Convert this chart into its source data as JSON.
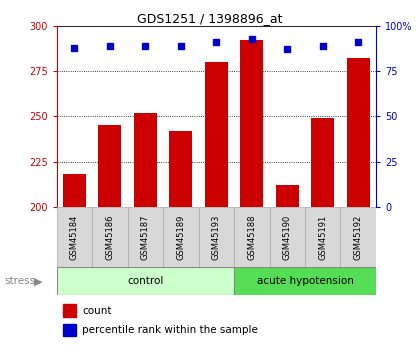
{
  "title": "GDS1251 / 1398896_at",
  "samples": [
    "GSM45184",
    "GSM45186",
    "GSM45187",
    "GSM45189",
    "GSM45193",
    "GSM45188",
    "GSM45190",
    "GSM45191",
    "GSM45192"
  ],
  "counts": [
    218,
    245,
    252,
    242,
    280,
    292,
    212,
    249,
    282
  ],
  "percentiles": [
    88,
    89,
    89,
    89,
    91,
    93,
    87,
    89,
    91
  ],
  "n_control": 5,
  "n_acute": 4,
  "control_label": "control",
  "acute_label": "acute hypotension",
  "control_color_light": "#ccffcc",
  "acute_color_dark": "#55dd55",
  "bar_color": "#cc0000",
  "dot_color": "#0000cc",
  "ylim": [
    200,
    300
  ],
  "y_ticks": [
    200,
    225,
    250,
    275,
    300
  ],
  "y2lim": [
    0,
    100
  ],
  "y2_ticks": [
    0,
    25,
    50,
    75,
    100
  ],
  "left_axis_color": "#cc0000",
  "right_axis_color": "#0000cc",
  "bg_color": "#d8d8d8",
  "stress_color": "#888888",
  "legend_count": "count",
  "legend_pct": "percentile rank within the sample",
  "title_fontsize": 9,
  "tick_fontsize": 7,
  "label_fontsize": 6,
  "group_fontsize": 7.5,
  "legend_fontsize": 7.5
}
